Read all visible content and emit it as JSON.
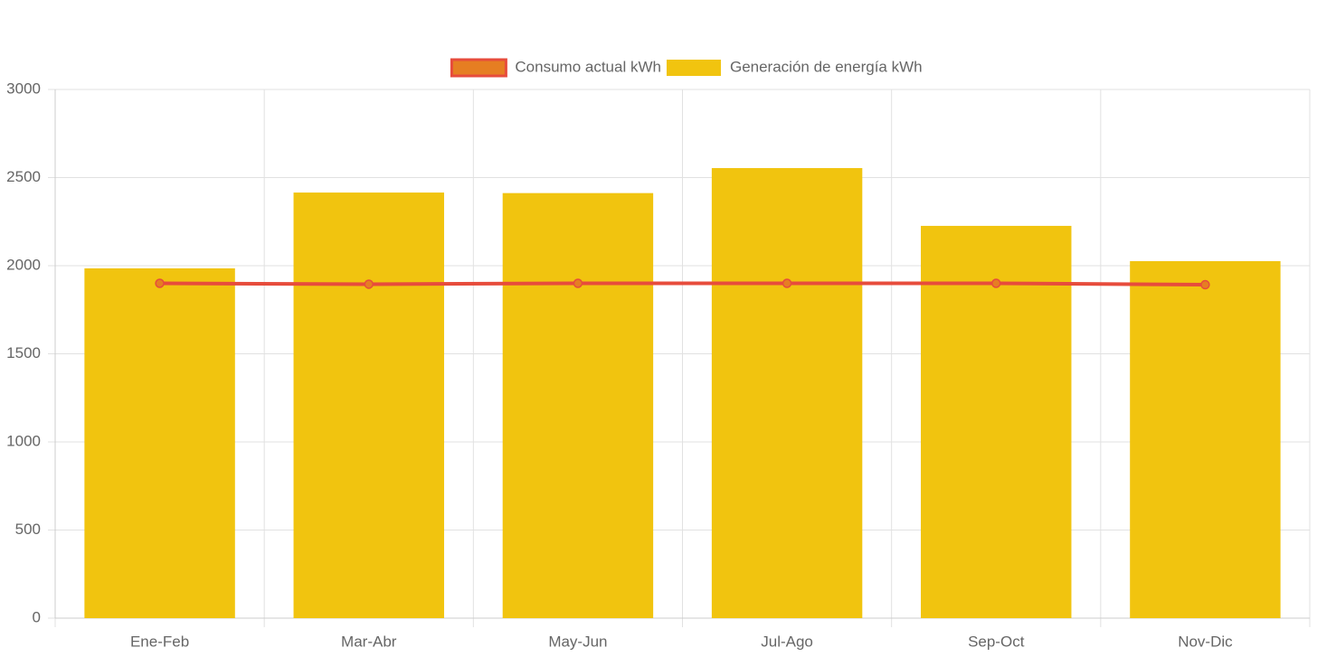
{
  "chart_data": {
    "type": "bar",
    "categories": [
      "Ene-Feb",
      "Mar-Abr",
      "May-Jun",
      "Jul-Ago",
      "Sep-Oct",
      "Nov-Dic"
    ],
    "series": [
      {
        "name": "Consumo actual kWh",
        "type": "line",
        "color": "#e74c3c",
        "point_color": "#e67e22",
        "values": [
          1900,
          1895,
          1900,
          1900,
          1900,
          1892
        ]
      },
      {
        "name": "Generación de energía kWh",
        "type": "bar",
        "color": "#f1c40f",
        "values": [
          1985,
          2415,
          2412,
          2554,
          2226,
          2026
        ]
      }
    ],
    "ylim": [
      0,
      3000
    ],
    "yticks": [
      0,
      500,
      1000,
      1500,
      2000,
      2500,
      3000
    ],
    "grid": true,
    "legend": "top"
  }
}
